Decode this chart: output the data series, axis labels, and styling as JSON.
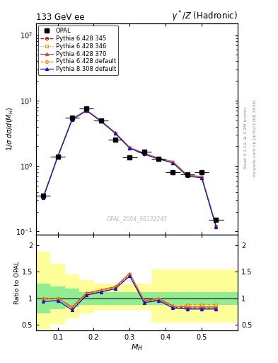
{
  "title_left": "133 GeV ee",
  "title_right": "γ*/Z (Hadronic)",
  "ylabel_main": "1/σ dσ/d(M_H)",
  "ylabel_ratio": "Ratio to OPAL",
  "xlabel": "M_H",
  "watermark": "OPAL_2004_S6132243",
  "right_label1": "Rivet 3.1.10, ≥ 3.2M events",
  "right_label2": "mcplots.cern.ch [arXiv:1306.3436]",
  "opal_x": [
    0.06,
    0.1,
    0.14,
    0.18,
    0.22,
    0.26,
    0.3,
    0.34,
    0.38,
    0.42,
    0.46,
    0.5,
    0.54
  ],
  "opal_y": [
    0.35,
    1.4,
    5.5,
    7.5,
    5.0,
    2.5,
    1.35,
    1.65,
    1.3,
    0.8,
    0.75,
    0.8,
    0.15
  ],
  "opal_xerr": [
    0.02,
    0.02,
    0.02,
    0.02,
    0.02,
    0.02,
    0.02,
    0.02,
    0.02,
    0.02,
    0.02,
    0.02,
    0.02
  ],
  "mc_x": [
    0.06,
    0.1,
    0.14,
    0.18,
    0.22,
    0.26,
    0.3,
    0.34,
    0.38,
    0.42,
    0.46,
    0.5,
    0.54
  ],
  "p345_y": [
    0.34,
    1.4,
    5.2,
    7.1,
    4.9,
    3.2,
    1.9,
    1.55,
    1.3,
    1.15,
    0.72,
    0.68,
    0.12
  ],
  "p346_y": [
    0.34,
    1.4,
    5.2,
    7.1,
    4.9,
    3.2,
    1.9,
    1.55,
    1.3,
    1.15,
    0.72,
    0.68,
    0.12
  ],
  "p370_y": [
    0.34,
    1.4,
    5.25,
    7.15,
    4.95,
    3.22,
    1.92,
    1.57,
    1.32,
    1.17,
    0.73,
    0.69,
    0.122
  ],
  "pdef_y": [
    0.34,
    1.4,
    5.2,
    7.1,
    4.9,
    3.2,
    1.9,
    1.55,
    1.3,
    1.15,
    0.72,
    0.68,
    0.12
  ],
  "p8def_y": [
    0.33,
    1.38,
    5.1,
    7.0,
    4.82,
    3.15,
    1.87,
    1.52,
    1.28,
    1.12,
    0.7,
    0.66,
    0.118
  ],
  "ratio_x": [
    0.06,
    0.1,
    0.14,
    0.18,
    0.22,
    0.26,
    0.3,
    0.34,
    0.38,
    0.42,
    0.46,
    0.5,
    0.54
  ],
  "ratio_345": [
    1.0,
    1.0,
    0.82,
    1.08,
    1.14,
    1.2,
    1.45,
    0.94,
    0.98,
    0.84,
    0.82,
    0.82,
    0.82
  ],
  "ratio_346": [
    1.0,
    1.0,
    0.82,
    1.08,
    1.14,
    1.2,
    1.45,
    0.94,
    0.98,
    0.84,
    0.82,
    0.82,
    0.82
  ],
  "ratio_370": [
    1.0,
    1.0,
    0.84,
    1.1,
    1.16,
    1.22,
    1.47,
    0.96,
    1.0,
    0.86,
    0.84,
    0.84,
    0.84
  ],
  "ratio_pdef": [
    1.0,
    1.0,
    0.82,
    1.08,
    1.14,
    1.2,
    1.45,
    0.94,
    0.98,
    0.84,
    0.88,
    0.88,
    0.88
  ],
  "ratio_p8def": [
    0.94,
    0.96,
    0.78,
    1.06,
    1.12,
    1.18,
    1.42,
    0.92,
    0.96,
    0.82,
    0.8,
    0.8,
    0.8
  ],
  "band_x": [
    0.04,
    0.08,
    0.12,
    0.16,
    0.2,
    0.24,
    0.28,
    0.32,
    0.36,
    0.4,
    0.44,
    0.48,
    0.52,
    0.56
  ],
  "band_yellow_lo": [
    0.42,
    0.52,
    0.62,
    0.72,
    0.78,
    0.78,
    0.78,
    0.78,
    0.55,
    0.55,
    0.55,
    0.55,
    0.55,
    0.55
  ],
  "band_yellow_hi": [
    1.88,
    1.65,
    1.45,
    1.35,
    1.28,
    1.28,
    1.28,
    1.28,
    1.55,
    1.55,
    1.55,
    1.55,
    1.55,
    1.55
  ],
  "band_green_lo": [
    0.72,
    0.8,
    0.84,
    0.88,
    0.88,
    0.88,
    0.88,
    0.88,
    0.88,
    0.88,
    0.88,
    0.88,
    0.88,
    0.88
  ],
  "band_green_hi": [
    1.28,
    1.22,
    1.18,
    1.12,
    1.12,
    1.12,
    1.12,
    1.12,
    1.12,
    1.12,
    1.12,
    1.12,
    1.12,
    1.12
  ],
  "color_345": "#cc0000",
  "color_346": "#ccaa00",
  "color_370": "#cc4444",
  "color_pdef": "#ff8800",
  "color_p8def": "#1111cc",
  "xlim": [
    0.04,
    0.6
  ],
  "ylim_main": [
    0.09,
    150.0
  ],
  "ylim_ratio": [
    0.4,
    2.2
  ],
  "label_opal": "OPAL",
  "label_345": "Pythia 6.428 345",
  "label_346": "Pythia 6.428 346",
  "label_370": "Pythia 6.428 370",
  "label_pdef": "Pythia 6.428 default",
  "label_p8def": "Pythia 8.308 default"
}
